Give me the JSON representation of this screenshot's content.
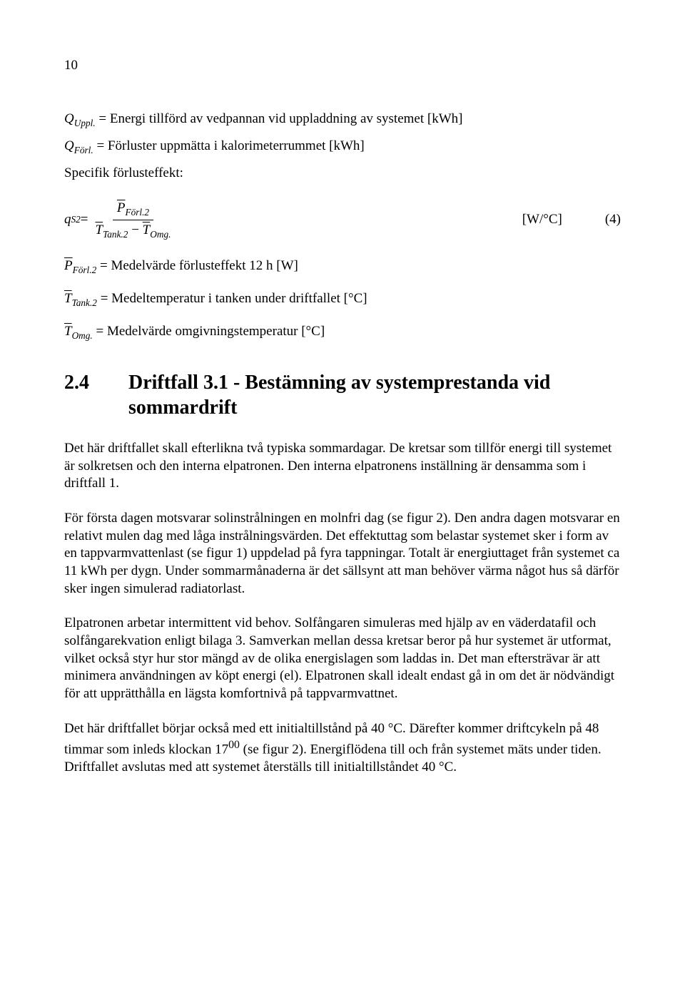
{
  "page_number": "10",
  "intro_defs": {
    "quppl": "Q",
    "quppl_sub": "Uppl.",
    "quppl_desc": " = Energi tillförd av vedpannan vid uppladdning av systemet [kWh]",
    "qforl": "Q",
    "qforl_sub": "Förl.",
    "qforl_desc": " = Förluster uppmätta i kalorimeterrummet [kWh]"
  },
  "subhead1": "Specifik förlusteffekt:",
  "eq4": {
    "lhs_var": "q",
    "lhs_sub": "S2",
    "equals": " = ",
    "num_var": "P",
    "num_sub": "Förl.2",
    "den_t1": "T",
    "den_t1_sub": "Tank.2",
    "minus": " − ",
    "den_t2": "T",
    "den_t2_sub": "Omg.",
    "unit": "[W/°C]",
    "eqnum": "(4)"
  },
  "defs": {
    "d1_var": "P",
    "d1_sub": "Förl.2",
    "d1_desc": " = Medelvärde förlusteffekt 12 h [W]",
    "d2_var": "T",
    "d2_sub": "Tank.2",
    "d2_desc": " = Medeltemperatur i tanken under driftfallet [°C]",
    "d3_var": "T",
    "d3_sub": "Omg.",
    "d3_desc": " = Medelvärde omgivningstemperatur [°C]"
  },
  "section": {
    "num": "2.4",
    "title": "Driftfall 3.1 - Bestämning av systemprestanda vid sommardrift"
  },
  "body": {
    "p1": "Det här driftfallet skall efterlikna två typiska sommardagar. De kretsar som tillför energi till systemet är solkretsen och den interna elpatronen. Den interna elpatronens inställning är densamma som i driftfall 1.",
    "p2": "För första dagen motsvarar solinstrålningen en molnfri dag (se figur 2). Den andra dagen motsvarar en relativt mulen dag med låga instrålningsvärden. Det effektuttag som belastar systemet sker i form av en tappvarmvattenlast (se figur 1) uppdelad på fyra tappningar. Totalt är energiuttaget från systemet ca 11 kWh per dygn. Under sommarmånaderna är det sällsynt att man behöver värma något hus så därför sker ingen simulerad radiatorlast.",
    "p3": "Elpatronen arbetar intermittent vid behov. Solfångaren simuleras med hjälp av en väderdatafil och solfångarekvation enligt bilaga 3. Samverkan mellan dessa kretsar beror på hur systemet är utformat, vilket också styr hur stor mängd av de olika energislagen som laddas in. Det man eftersträvar är att minimera användningen av köpt energi (el). Elpatronen skall idealt endast gå in om det är nödvändigt för att upprätthålla en lägsta komfortnivå på tappvarmvattnet.",
    "p4_pre": "Det här driftfallet börjar också med ett initialtillstånd på 40 °C. Därefter kommer driftcykeln på 48 timmar som inleds klockan 17",
    "p4_sup": "00",
    "p4_post": " (se figur 2). Energiflödena till och från systemet mäts under tiden. Driftfallet avslutas med att systemet återställs till initialtillståndet 40 °C."
  }
}
